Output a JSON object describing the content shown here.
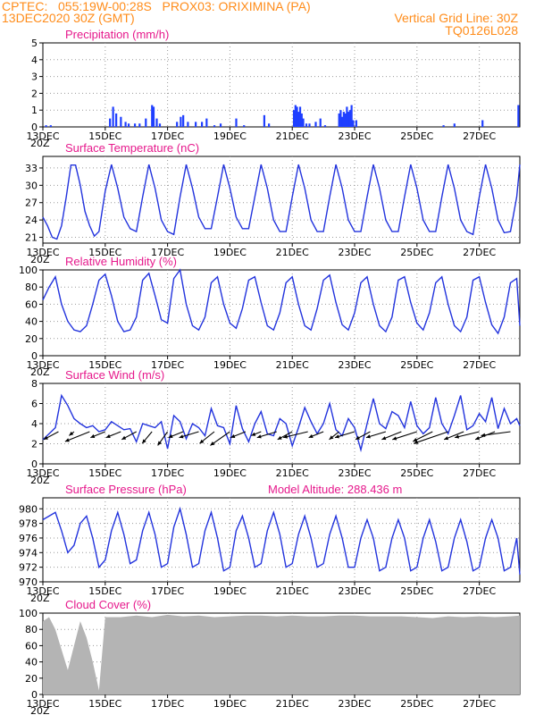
{
  "header": {
    "line1": "CPTEC:   055:19W-00:28S   PROX03: ORIXIMINA (PA)",
    "line2": "13DEC2020 30Z (GMT)",
    "vertical_grid": "Vertical Grid Line: 30Z",
    "code": "TQ0126L028",
    "color": "#ff8c1a"
  },
  "colors": {
    "title": "#e6198c",
    "line": "#2233dd",
    "bar": "#1f3fff",
    "cloud": "#b4b4b4",
    "grid": "#9a9a9a"
  },
  "x_axis": {
    "ticks": [
      "13DEC",
      "15DEC",
      "17DEC",
      "19DEC",
      "21DEC",
      "23DEC",
      "25DEC",
      "27DEC"
    ],
    "day_offset": [
      0,
      2,
      4,
      6,
      8,
      10,
      12,
      14
    ],
    "range_days": [
      0,
      15.3
    ],
    "cut_label": "20Z"
  },
  "chart_data": [
    {
      "id": "precip",
      "type": "bar",
      "title": "Precipitation (mm/h)",
      "ylim": [
        0,
        5
      ],
      "yticks": [
        0,
        1,
        2,
        3,
        4,
        5
      ],
      "x": [
        0.1,
        0.25,
        2.15,
        2.25,
        2.35,
        2.5,
        2.65,
        2.75,
        2.95,
        3.1,
        3.3,
        3.5,
        3.55,
        3.65,
        3.75,
        4.3,
        4.42,
        4.5,
        4.65,
        4.9,
        5.1,
        5.25,
        5.5,
        5.7,
        6.2,
        6.45,
        7.1,
        7.25,
        8.05,
        8.1,
        8.15,
        8.2,
        8.25,
        8.3,
        8.35,
        8.45,
        8.55,
        8.75,
        8.9,
        9.05,
        9.5,
        9.55,
        9.6,
        9.65,
        9.7,
        9.75,
        9.8,
        9.85,
        9.9,
        9.95,
        10.05,
        12.85,
        13.2,
        14.1,
        15.25
      ],
      "values": [
        0.1,
        0.1,
        0.5,
        1.2,
        0.8,
        0.6,
        0.3,
        0.2,
        0.2,
        0.2,
        0.5,
        1.3,
        1.2,
        0.5,
        0.2,
        0.3,
        0.6,
        0.7,
        0.3,
        0.3,
        0.3,
        0.5,
        0.1,
        0.2,
        0.5,
        0.1,
        0.7,
        0.2,
        1.0,
        1.3,
        1.2,
        0.9,
        1.2,
        0.8,
        0.5,
        0.2,
        0.2,
        0.3,
        0.5,
        0.1,
        0.8,
        1.0,
        0.6,
        0.9,
        0.8,
        1.2,
        0.9,
        1.0,
        1.3,
        0.4,
        0.4,
        0.1,
        0.2,
        0.4,
        1.3
      ]
    },
    {
      "id": "temp",
      "type": "line",
      "title": "Surface Temperature (nC)",
      "ylim": [
        20,
        35
      ],
      "yticks": [
        21,
        24,
        27,
        30,
        33
      ],
      "x": [
        0,
        0.15,
        0.3,
        0.45,
        0.6,
        0.75,
        0.9,
        1.05,
        1.2,
        1.35,
        1.5,
        1.65,
        1.8,
        2.0,
        2.2,
        2.4,
        2.6,
        2.8,
        3.0,
        3.2,
        3.4,
        3.6,
        3.8,
        4.0,
        4.2,
        4.4,
        4.6,
        4.8,
        5.0,
        5.2,
        5.4,
        5.6,
        5.8,
        6.0,
        6.2,
        6.4,
        6.6,
        6.8,
        7.0,
        7.2,
        7.4,
        7.6,
        7.8,
        8.0,
        8.2,
        8.4,
        8.6,
        8.8,
        9.0,
        9.2,
        9.4,
        9.6,
        9.8,
        10.0,
        10.2,
        10.4,
        10.6,
        10.8,
        11.0,
        11.2,
        11.4,
        11.6,
        11.8,
        12.0,
        12.2,
        12.4,
        12.6,
        12.8,
        13.0,
        13.2,
        13.4,
        13.6,
        13.8,
        14.0,
        14.2,
        14.4,
        14.6,
        14.8,
        15.0,
        15.2,
        15.3
      ],
      "values": [
        24.5,
        23,
        21,
        20.7,
        23,
        28,
        33.5,
        33.5,
        30,
        25.5,
        23,
        21.2,
        22,
        29,
        33.6,
        29.5,
        24.5,
        22.5,
        22,
        28,
        33.6,
        29.5,
        24,
        22,
        21.5,
        28,
        33.6,
        29.5,
        24.5,
        22.5,
        22.5,
        28,
        33.6,
        29.5,
        24.5,
        22.5,
        22.5,
        28,
        33.6,
        29.5,
        24,
        22,
        22,
        28,
        33.6,
        29.5,
        24,
        22,
        22,
        28,
        33.6,
        29.5,
        24,
        22,
        22,
        28,
        33.6,
        29.5,
        24,
        22,
        22,
        28,
        33.6,
        29.5,
        24,
        22,
        22,
        28,
        33.6,
        29.5,
        24,
        22,
        21.5,
        28,
        33.6,
        29.5,
        24,
        21.8,
        22,
        28,
        33.6
      ]
    },
    {
      "id": "rh",
      "type": "line",
      "title": "Relative Humidity (%)",
      "ylim": [
        0,
        100
      ],
      "yticks": [
        0,
        20,
        40,
        60,
        80,
        100
      ],
      "x": [
        0,
        0.2,
        0.4,
        0.6,
        0.8,
        1.0,
        1.2,
        1.4,
        1.6,
        1.8,
        2.0,
        2.2,
        2.4,
        2.6,
        2.8,
        3.0,
        3.2,
        3.4,
        3.6,
        3.8,
        4.0,
        4.2,
        4.4,
        4.6,
        4.8,
        5.0,
        5.2,
        5.4,
        5.6,
        5.8,
        6.0,
        6.2,
        6.4,
        6.6,
        6.8,
        7.0,
        7.2,
        7.4,
        7.6,
        7.8,
        8.0,
        8.2,
        8.4,
        8.6,
        8.8,
        9.0,
        9.2,
        9.4,
        9.6,
        9.8,
        10.0,
        10.2,
        10.4,
        10.6,
        10.8,
        11.0,
        11.2,
        11.4,
        11.6,
        11.8,
        12.0,
        12.2,
        12.4,
        12.6,
        12.8,
        13.0,
        13.2,
        13.4,
        13.6,
        13.8,
        14.0,
        14.2,
        14.4,
        14.6,
        14.8,
        15.0,
        15.2,
        15.3
      ],
      "values": [
        65,
        80,
        92,
        60,
        40,
        30,
        28,
        35,
        60,
        88,
        95,
        70,
        40,
        28,
        30,
        45,
        88,
        96,
        70,
        42,
        38,
        90,
        100,
        60,
        35,
        30,
        45,
        85,
        92,
        60,
        38,
        32,
        55,
        88,
        92,
        62,
        35,
        30,
        50,
        85,
        92,
        60,
        35,
        30,
        55,
        88,
        94,
        62,
        36,
        30,
        50,
        85,
        92,
        60,
        35,
        28,
        45,
        88,
        92,
        62,
        38,
        30,
        50,
        85,
        92,
        60,
        35,
        28,
        45,
        88,
        92,
        62,
        36,
        26,
        45,
        85,
        90,
        35
      ]
    },
    {
      "id": "wind",
      "type": "line",
      "title": "Surface Wind (m/s)",
      "ylim": [
        0,
        8
      ],
      "yticks": [
        0,
        2,
        4,
        6,
        8
      ],
      "x": [
        0,
        0.2,
        0.4,
        0.6,
        0.8,
        1.0,
        1.2,
        1.4,
        1.6,
        1.8,
        2.0,
        2.2,
        2.4,
        2.6,
        2.8,
        3.0,
        3.2,
        3.4,
        3.6,
        3.8,
        4.0,
        4.2,
        4.4,
        4.6,
        4.8,
        5.0,
        5.2,
        5.4,
        5.6,
        5.8,
        6.0,
        6.2,
        6.4,
        6.6,
        6.8,
        7.0,
        7.2,
        7.4,
        7.6,
        7.8,
        8.0,
        8.2,
        8.4,
        8.6,
        8.8,
        9.0,
        9.2,
        9.4,
        9.6,
        9.8,
        10.0,
        10.2,
        10.4,
        10.6,
        10.8,
        11.0,
        11.2,
        11.4,
        11.6,
        11.8,
        12.0,
        12.2,
        12.4,
        12.6,
        12.8,
        13.0,
        13.2,
        13.4,
        13.6,
        13.8,
        14.0,
        14.2,
        14.4,
        14.6,
        14.8,
        15.0,
        15.2,
        15.3
      ],
      "values": [
        2.4,
        3.0,
        3.6,
        6.8,
        5.8,
        4.5,
        4.0,
        3.6,
        3.8,
        3.2,
        3.4,
        4.2,
        3.8,
        3.4,
        3.5,
        2.2,
        4.0,
        3.8,
        3.6,
        4.2,
        1.5,
        4.8,
        4.2,
        2.5,
        4.0,
        3.6,
        2.8,
        5.5,
        3.8,
        3.6,
        2.0,
        5.8,
        3.5,
        2.2,
        4.0,
        5.2,
        3.0,
        2.8,
        4.5,
        4.0,
        1.8,
        3.6,
        5.6,
        4.2,
        3.0,
        4.0,
        6.0,
        3.4,
        2.8,
        4.5,
        3.6,
        1.4,
        4.0,
        6.5,
        4.0,
        3.5,
        5.2,
        4.8,
        3.6,
        6.2,
        3.8,
        3.0,
        3.6,
        6.6,
        4.0,
        3.0,
        4.8,
        6.8,
        3.4,
        3.8,
        5.0,
        4.2,
        6.6,
        3.5,
        5.5,
        4.0,
        4.5,
        3.8
      ],
      "barbs_x": [
        0.5,
        1.0,
        1.5,
        2.0,
        2.5,
        3.0,
        3.5,
        4.0,
        4.5,
        5.0,
        5.5,
        6.0,
        6.5,
        7.0,
        7.5,
        8.0,
        8.5,
        9.0,
        9.5,
        10.0,
        10.5,
        11.0,
        11.5,
        12.0,
        12.5,
        13.0,
        13.5,
        14.0,
        14.5,
        15.0
      ],
      "barbs_u": [
        -1.5,
        -0.5,
        -2.5,
        -1.5,
        -1.5,
        -1.5,
        -1.0,
        -1.0,
        -1.5,
        -2.0,
        -1.5,
        -2.0,
        -1.5,
        -1.0,
        -2.0,
        -1.5,
        -2.5,
        -1.5,
        -1.0,
        -2.0,
        -1.5,
        -2.0,
        -2.0,
        -2.5,
        -2.0,
        -3.5,
        -2.0,
        -2.5,
        -2.0,
        -3.0
      ],
      "barbs_v": [
        -0.8,
        -0.4,
        -1.0,
        -0.6,
        -0.6,
        -0.8,
        -1.2,
        -1.4,
        -0.6,
        -0.6,
        -1.2,
        -1.4,
        -0.6,
        -0.4,
        -0.6,
        -0.8,
        -0.6,
        -0.6,
        -0.8,
        -0.6,
        -0.8,
        -0.6,
        -0.8,
        -0.8,
        -1.0,
        -1.2,
        -0.8,
        -0.6,
        -0.8,
        -0.4
      ]
    },
    {
      "id": "pressure",
      "type": "line",
      "title": "Surface Pressure (hPa)",
      "subtitle": "Model Altitude: 288.436 m",
      "ylim": [
        970,
        981.5
      ],
      "yticks": [
        970,
        972,
        974,
        976,
        978,
        980
      ],
      "x": [
        0,
        0.2,
        0.4,
        0.6,
        0.8,
        1.0,
        1.2,
        1.4,
        1.6,
        1.8,
        2.0,
        2.2,
        2.4,
        2.6,
        2.8,
        3.0,
        3.2,
        3.4,
        3.6,
        3.8,
        4.0,
        4.2,
        4.4,
        4.6,
        4.8,
        5.0,
        5.2,
        5.4,
        5.6,
        5.8,
        6.0,
        6.2,
        6.4,
        6.6,
        6.8,
        7.0,
        7.2,
        7.4,
        7.6,
        7.8,
        8.0,
        8.2,
        8.4,
        8.6,
        8.8,
        9.0,
        9.2,
        9.4,
        9.6,
        9.8,
        10.0,
        10.2,
        10.4,
        10.6,
        10.8,
        11.0,
        11.2,
        11.4,
        11.6,
        11.8,
        12.0,
        12.2,
        12.4,
        12.6,
        12.8,
        13.0,
        13.2,
        13.4,
        13.6,
        13.8,
        14.0,
        14.2,
        14.4,
        14.6,
        14.8,
        15.0,
        15.2,
        15.3
      ],
      "values": [
        978.5,
        979,
        979.5,
        977,
        974,
        975,
        978,
        979,
        976,
        972,
        973,
        977,
        979.5,
        976.5,
        972.5,
        973,
        977,
        979.5,
        976.5,
        972,
        972.5,
        977.5,
        980,
        976.5,
        972,
        972.5,
        977,
        979.5,
        976,
        971.5,
        972,
        977,
        979,
        976,
        972,
        972.5,
        977,
        979.5,
        976.5,
        972,
        972.5,
        976.5,
        979,
        976,
        972,
        972.5,
        976.5,
        979,
        976,
        972,
        972,
        976,
        978.5,
        976,
        971.5,
        972,
        976,
        978.5,
        976,
        971.5,
        972,
        976,
        978.5,
        975.5,
        971.5,
        972,
        976,
        978.5,
        975.5,
        971.5,
        972,
        976,
        978.5,
        976,
        971.5,
        972,
        976,
        971
      ]
    },
    {
      "id": "cloud",
      "type": "area",
      "title": "Cloud Cover (%)",
      "ylim": [
        0,
        100
      ],
      "yticks": [
        0,
        20,
        40,
        60,
        80,
        100
      ],
      "x": [
        0,
        0.2,
        0.4,
        0.6,
        0.8,
        1.0,
        1.2,
        1.4,
        1.6,
        1.8,
        2.0,
        2.5,
        3.0,
        3.5,
        4.0,
        4.5,
        5.0,
        5.5,
        6.0,
        6.5,
        7.0,
        7.5,
        8.0,
        8.5,
        9.0,
        9.5,
        10.0,
        10.5,
        11.0,
        11.5,
        12.0,
        12.5,
        13.0,
        13.5,
        14.0,
        14.5,
        15.0,
        15.3
      ],
      "values": [
        90,
        95,
        80,
        55,
        30,
        60,
        90,
        70,
        40,
        5,
        95,
        95,
        97,
        95,
        98,
        96,
        97,
        95,
        96,
        97,
        97,
        96,
        97,
        96,
        96,
        97,
        97,
        96,
        96,
        96,
        95,
        94,
        96,
        95,
        96,
        95,
        96,
        97
      ]
    }
  ]
}
